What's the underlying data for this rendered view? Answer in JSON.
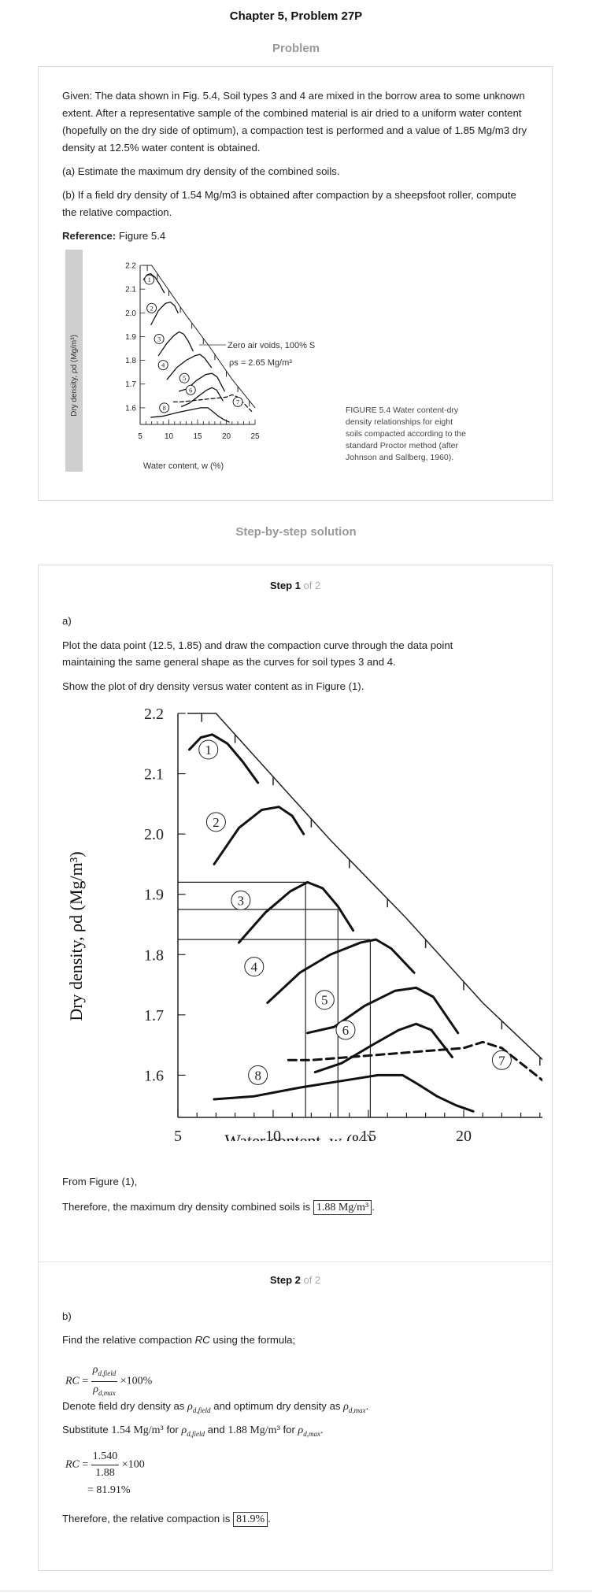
{
  "page": {
    "title": "Chapter 5, Problem 27P",
    "problem_heading": "Problem",
    "solution_heading": "Step-by-step solution"
  },
  "problem": {
    "given": "Given: The data shown in Fig. 5.4, Soil types 3 and 4 are mixed in the borrow area to some unknown extent. After a representative sample of the combined material is air dried to a uniform water content (hopefully on the dry side of optimum), a compaction test is performed and a value of 1.85 Mg/m3 dry density at 12.5% water content is obtained.",
    "part_a": "(a) Estimate the maximum dry density of the combined soils.",
    "part_b": "(b) If a field dry density of 1.54 Mg/m3 is obtained after compaction by a sheepsfoot roller, compute the relative compaction.",
    "reference_label": "Reference:",
    "reference_value": " Figure 5.4",
    "figure": {
      "ylabel": "Dry density, ρd (Mg/m³)",
      "xlabel": "Water content, w (%)",
      "zav_label": "Zero air voids, 100% S",
      "rho_label": "ρs = 2.65 Mg/m³",
      "caption_lines": [
        "FIGURE 5.4   Water content-dry",
        "density relationships for eight",
        "soils compacted according to the",
        "standard Proctor method (after",
        "Johnson and Sallberg, 1960)."
      ]
    }
  },
  "step1": {
    "step_label": "Step 1",
    "of_label": " of 2",
    "part": "a)",
    "line1": "Plot the data point (12.5, 1.85) and draw the compaction curve through the data point",
    "line2": "maintaining the same general shape as the curves for soil types 3 and 4.",
    "line3": "Show the plot of dry density versus water content as in Figure (1).",
    "from_fig": "From Figure (1),",
    "therefore": "Therefore, the maximum dry density combined soils is",
    "answer": "1.88 Mg/m³"
  },
  "step2": {
    "step_label": "Step 2",
    "of_label": " of 2",
    "part": "b)",
    "find_pre": "Find the relative compaction ",
    "find_rc": "RC",
    "find_post": " using the formula;",
    "denote_a": "Denote field dry density as",
    "denote_b": "and optimum dry density as",
    "substitute": "Substitute",
    "val_field": "1.54 Mg/m³",
    "val_for": "for",
    "val_and": "and",
    "val_max": "1.88 Mg/m³",
    "calc_num": "1.540",
    "calc_den": "1.88",
    "calc_result": "= 81.91%",
    "therefore": "Therefore, the relative compaction is",
    "answer": "81.9%"
  },
  "chart_data": {
    "type": "line",
    "title": "",
    "xlabel": "Water content, w (%)",
    "ylabel": "Dry density, ρd (Mg/m³)",
    "xlim": [
      5,
      25
    ],
    "ylim": [
      1.53,
      2.2
    ],
    "xticks": [
      5,
      10,
      15,
      20,
      25
    ],
    "yticks": [
      1.6,
      1.7,
      1.8,
      1.9,
      2.0,
      2.1,
      2.2
    ],
    "series": [
      {
        "name": "1",
        "x": [
          5.6,
          6.2,
          6.8,
          7.6,
          8.4,
          9.2
        ],
        "y": [
          2.14,
          2.16,
          2.165,
          2.15,
          2.12,
          2.085
        ]
      },
      {
        "name": "2",
        "x": [
          6.9,
          8.2,
          9.4,
          10.3,
          11.0,
          11.6
        ],
        "y": [
          1.95,
          2.01,
          2.04,
          2.045,
          2.03,
          2.0
        ]
      },
      {
        "name": "3",
        "x": [
          8.2,
          9.6,
          10.9,
          11.8,
          12.6,
          13.4,
          14.2
        ],
        "y": [
          1.82,
          1.87,
          1.905,
          1.92,
          1.91,
          1.88,
          1.84
        ]
      },
      {
        "name": "4",
        "x": [
          9.7,
          11.4,
          13.0,
          14.6,
          15.4,
          16.2,
          17.4
        ],
        "y": [
          1.72,
          1.77,
          1.8,
          1.82,
          1.825,
          1.81,
          1.77
        ]
      },
      {
        "name": "5",
        "x": [
          11.8,
          13.2,
          14.8,
          16.4,
          17.5,
          18.4,
          19.7
        ],
        "y": [
          1.67,
          1.68,
          1.715,
          1.74,
          1.745,
          1.73,
          1.67
        ]
      },
      {
        "name": "6",
        "x": [
          12.2,
          13.6,
          15.2,
          16.6,
          17.5,
          18.3,
          19.4
        ],
        "y": [
          1.605,
          1.62,
          1.65,
          1.675,
          1.685,
          1.675,
          1.63
        ]
      },
      {
        "name": "7",
        "x": [
          10.8,
          12.0,
          14.0,
          16.0,
          18.0,
          20.0,
          21.0,
          22.0,
          23.2,
          24.4
        ],
        "y": [
          1.625,
          1.625,
          1.63,
          1.635,
          1.64,
          1.645,
          1.655,
          1.645,
          1.615,
          1.585
        ]
      },
      {
        "name": "8",
        "x": [
          6.9,
          9.0,
          11.5,
          13.5,
          15.5,
          16.8,
          17.6,
          18.6,
          19.6,
          20.5
        ],
        "y": [
          1.56,
          1.565,
          1.58,
          1.59,
          1.6,
          1.6,
          1.585,
          1.565,
          1.55,
          1.54
        ]
      }
    ],
    "zero_air_voids": {
      "x": [
        5.5,
        7.0,
        9.0,
        11.0,
        13.0,
        15.0,
        17.0,
        19.0,
        21.0,
        23.0,
        25.0
      ],
      "y": [
        2.2,
        2.2,
        2.13,
        2.06,
        1.99,
        1.925,
        1.86,
        1.79,
        1.72,
        1.66,
        1.6
      ]
    },
    "construction_lines": {
      "x_values": [
        11.7,
        13.4,
        15.1
      ],
      "y_values": [
        1.92,
        1.875,
        1.825
      ]
    }
  }
}
